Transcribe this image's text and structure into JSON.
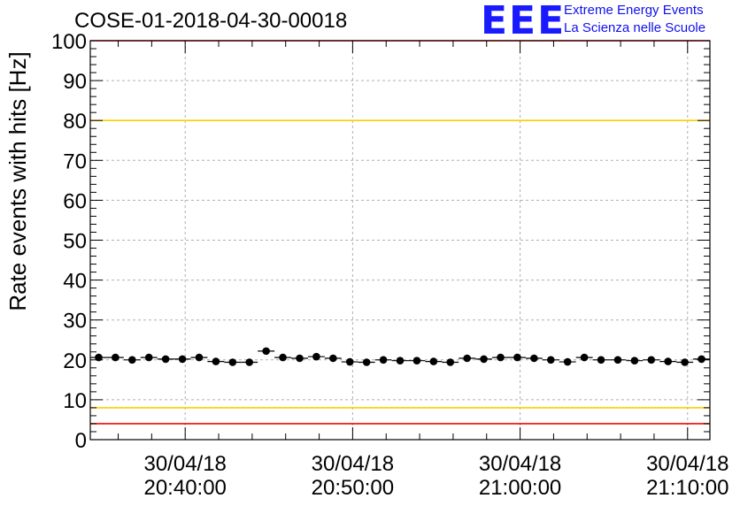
{
  "chart_data": {
    "type": "scatter",
    "title": "COSE-01-2018-04-30-00018",
    "ylabel": "Rate events with hits [Hz]",
    "xlabel": "",
    "ylim": [
      0,
      100
    ],
    "yticks": [
      0,
      10,
      20,
      30,
      40,
      50,
      60,
      70,
      80,
      90,
      100
    ],
    "grid": true,
    "x_tick_labels": [
      {
        "date": "30/04/18",
        "time": "20:40:00"
      },
      {
        "date": "30/04/18",
        "time": "20:50:00"
      },
      {
        "date": "30/04/18",
        "time": "21:00:00"
      },
      {
        "date": "30/04/18",
        "time": "21:10:00"
      }
    ],
    "xlim": [
      "20:34:20",
      "21:11:20"
    ],
    "reference_lines": [
      {
        "y": 100,
        "color": "#ff0000"
      },
      {
        "y": 80,
        "color": "#ffcc00"
      },
      {
        "y": 8,
        "color": "#ffcc00"
      },
      {
        "y": 4,
        "color": "#ff0000"
      }
    ],
    "series": [
      {
        "marker": "circle",
        "color": "#000000",
        "x": [
          "20:34:50",
          "20:35:50",
          "20:36:50",
          "20:37:50",
          "20:38:50",
          "20:39:50",
          "20:40:50",
          "20:41:50",
          "20:42:50",
          "20:43:50",
          "20:44:50",
          "20:45:50",
          "20:46:50",
          "20:47:50",
          "20:48:50",
          "20:49:50",
          "20:50:50",
          "20:51:50",
          "20:52:50",
          "20:53:50",
          "20:54:50",
          "20:55:50",
          "20:56:50",
          "20:57:50",
          "20:58:50",
          "20:59:50",
          "21:00:50",
          "21:01:50",
          "21:02:50",
          "21:03:50",
          "21:04:50",
          "21:05:50",
          "21:06:50",
          "21:07:50",
          "21:08:50",
          "21:09:50",
          "21:10:50"
        ],
        "y": [
          20.6,
          20.6,
          20.0,
          20.6,
          20.2,
          20.2,
          20.6,
          19.6,
          19.4,
          19.4,
          22.2,
          20.6,
          20.4,
          20.8,
          20.4,
          19.5,
          19.4,
          20.0,
          19.8,
          19.8,
          19.6,
          19.4,
          20.4,
          20.2,
          20.6,
          20.6,
          20.4,
          20.0,
          19.5,
          20.6,
          20.0,
          20.0,
          19.8,
          20.0,
          19.6,
          19.4,
          20.2
        ]
      }
    ]
  },
  "logo": {
    "mark": "EEE",
    "line1": "Extreme Energy Events",
    "line2": "La Scienza nelle Scuole"
  },
  "colors": {
    "logo": "#1a1aff",
    "frame": "#000000",
    "grid": "#b0b0b0"
  }
}
